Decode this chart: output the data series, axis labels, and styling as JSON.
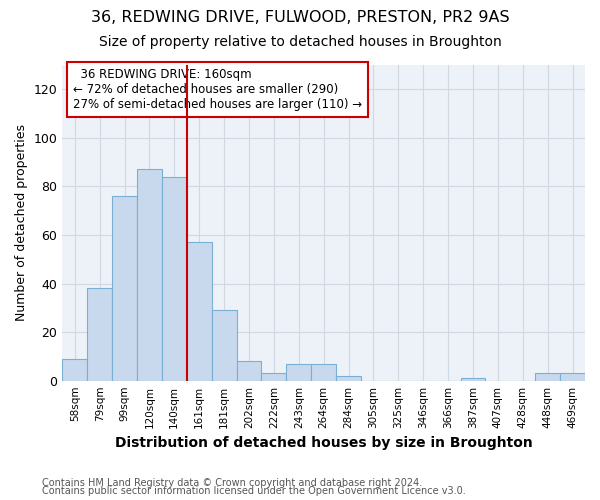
{
  "title1": "36, REDWING DRIVE, FULWOOD, PRESTON, PR2 9AS",
  "title2": "Size of property relative to detached houses in Broughton",
  "xlabel": "Distribution of detached houses by size in Broughton",
  "ylabel": "Number of detached properties",
  "footer1": "Contains HM Land Registry data © Crown copyright and database right 2024.",
  "footer2": "Contains public sector information licensed under the Open Government Licence v3.0.",
  "categories": [
    "58sqm",
    "79sqm",
    "99sqm",
    "120sqm",
    "140sqm",
    "161sqm",
    "181sqm",
    "202sqm",
    "222sqm",
    "243sqm",
    "264sqm",
    "284sqm",
    "305sqm",
    "325sqm",
    "346sqm",
    "366sqm",
    "387sqm",
    "407sqm",
    "428sqm",
    "448sqm",
    "469sqm"
  ],
  "values": [
    9,
    38,
    76,
    87,
    84,
    57,
    29,
    8,
    3,
    7,
    7,
    2,
    0,
    0,
    0,
    0,
    1,
    0,
    0,
    3,
    3
  ],
  "bar_color": "#c8d9ed",
  "bar_edge_color": "#7aafd4",
  "highlight_index": 5,
  "highlight_line_color": "#cc0000",
  "annotation_text": "  36 REDWING DRIVE: 160sqm  \n← 72% of detached houses are smaller (290)\n27% of semi-detached houses are larger (110) →",
  "annotation_box_color": "#ffffff",
  "annotation_box_edge_color": "#cc0000",
  "annotation_fontsize": 8.5,
  "ylim": [
    0,
    130
  ],
  "yticks": [
    0,
    20,
    40,
    60,
    80,
    100,
    120
  ],
  "grid_color": "#d0d8e4",
  "bg_color": "#edf2f8",
  "title1_fontsize": 11.5,
  "title2_fontsize": 10,
  "xlabel_fontsize": 10,
  "ylabel_fontsize": 9,
  "footer_fontsize": 7
}
